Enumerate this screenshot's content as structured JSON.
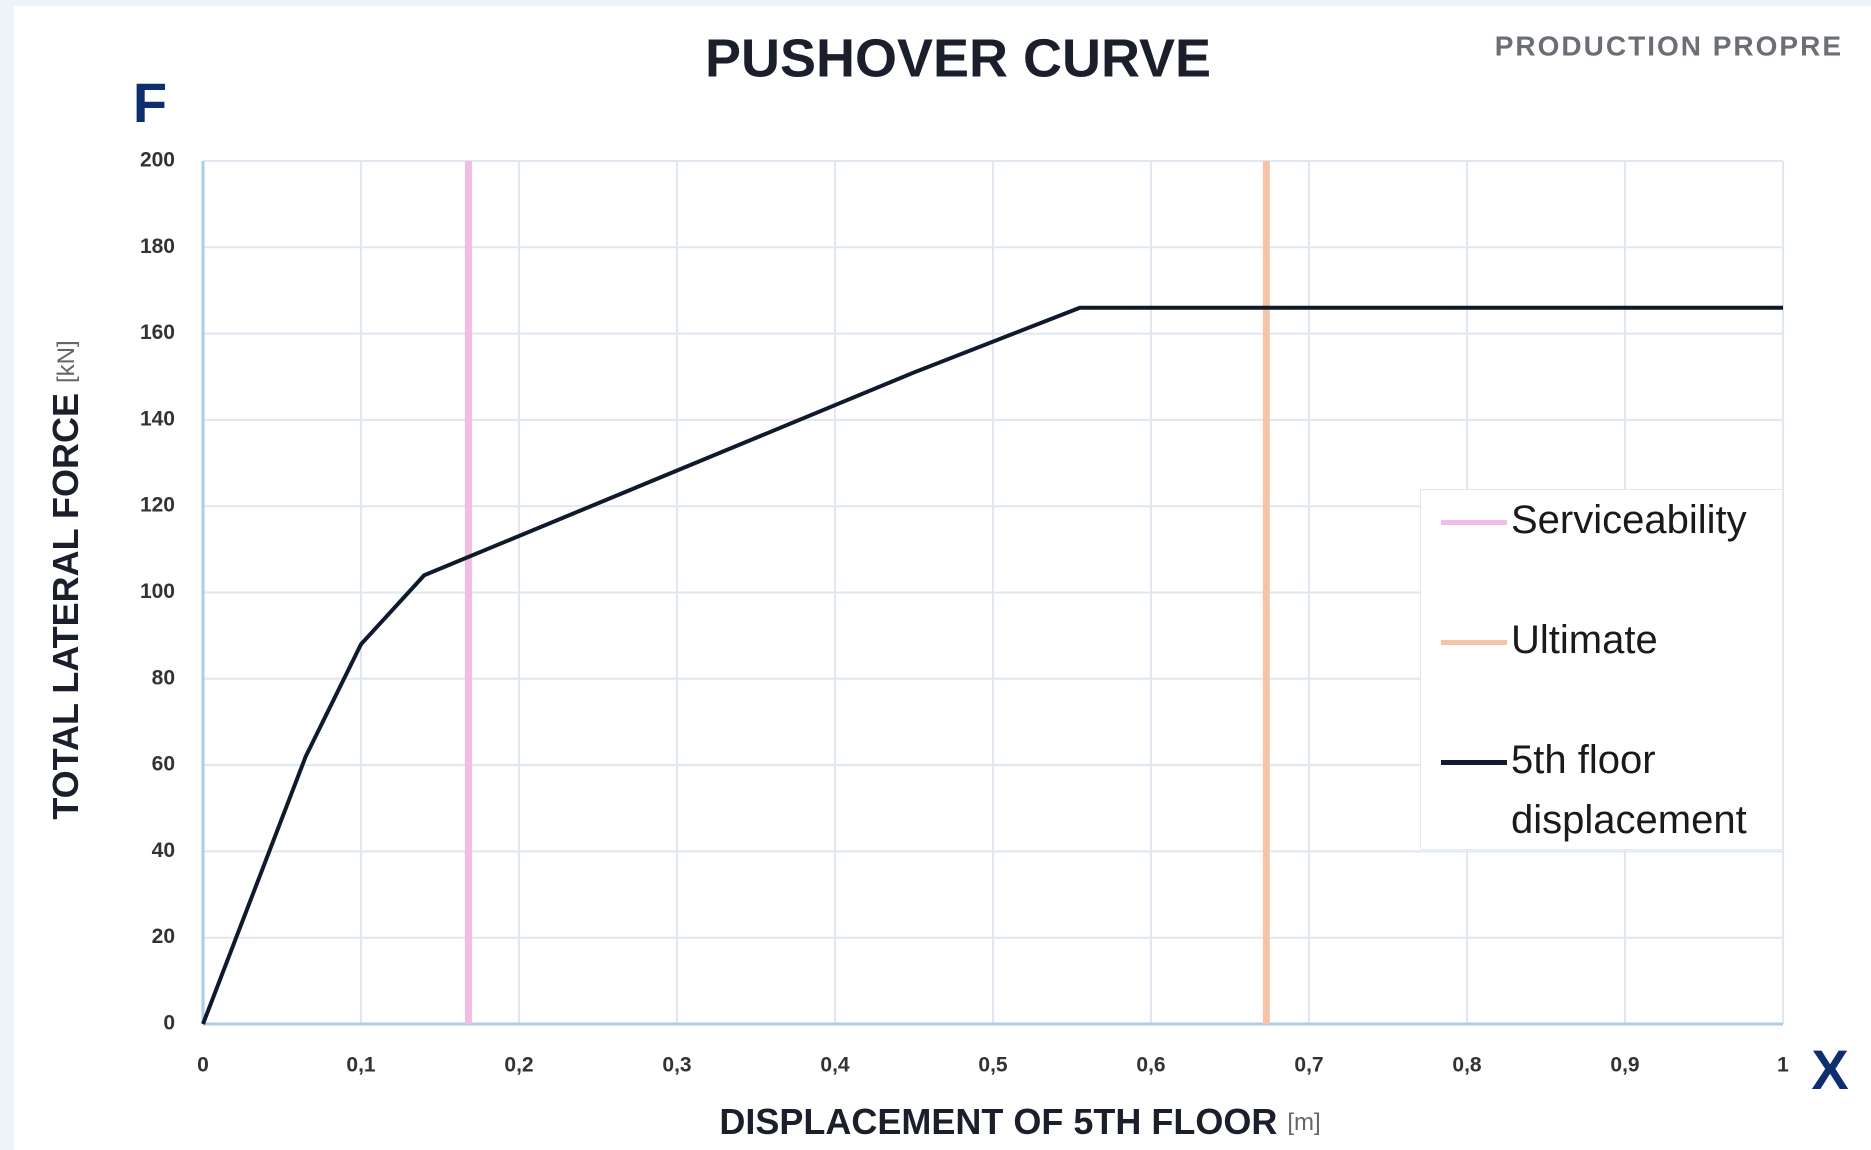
{
  "chart_data": {
    "type": "line",
    "title": "PUSHOVER CURVE",
    "brand": "PRODUCTION PROPRE",
    "force_symbol": "F",
    "displacement_symbol": "X",
    "y_label": "TOTAL LATERAL FORCE",
    "y_unit": "[kN]",
    "x_label": "DISPLACEMENT OF 5TH FLOOR",
    "x_unit": "[m]",
    "xlim": [
      0,
      1
    ],
    "ylim": [
      0,
      200
    ],
    "xticks": [
      0,
      {
        "value": 0.1,
        "label": "0,1"
      },
      {
        "value": 0.2,
        "label": "0,2"
      },
      {
        "value": 0.3,
        "label": "0,3"
      },
      {
        "value": 0.4,
        "label": "0,4"
      },
      {
        "value": 0.5,
        "label": "0,5"
      },
      {
        "value": 0.6,
        "label": "0,6"
      },
      {
        "value": 0.7,
        "label": "0,7"
      },
      {
        "value": 0.8,
        "label": "0,8"
      },
      {
        "value": 0.9,
        "label": "0,9"
      },
      1
    ],
    "yticks": [
      0,
      20,
      40,
      60,
      80,
      100,
      120,
      140,
      160,
      180,
      200
    ],
    "grid": true,
    "vlines": [
      {
        "name": "Serviceability",
        "color": "#f2bde3",
        "x": 0.168
      },
      {
        "name": "Ultimate",
        "color": "#f5c4a8",
        "x": 0.673
      }
    ],
    "series": [
      {
        "name": "5th floor displacement",
        "color": "#0f1a2b",
        "x": [
          0,
          0.065,
          0.1,
          0.14,
          0.45,
          0.555,
          1
        ],
        "values": [
          0,
          62,
          88,
          104,
          151,
          166,
          166
        ]
      }
    ]
  }
}
